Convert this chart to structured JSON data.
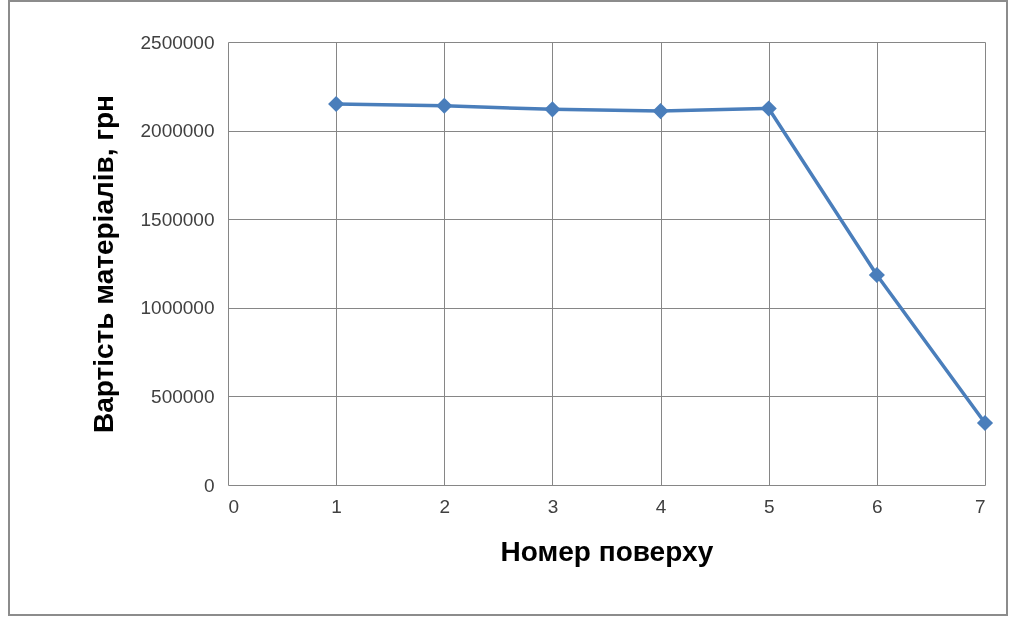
{
  "chart_data": {
    "type": "line",
    "xlabel": "Номер поверху",
    "ylabel": "Вартість матеріалів, грн",
    "x": [
      1,
      2,
      3,
      4,
      5,
      6,
      7
    ],
    "series": [
      {
        "color": "#4a7ebb",
        "values": [
          2150000,
          2140000,
          2120000,
          2110000,
          2125000,
          1185000,
          350000
        ]
      }
    ],
    "xlim": [
      0,
      7
    ],
    "xticks": [
      0,
      1,
      2,
      3,
      4,
      5,
      6,
      7
    ],
    "ylim": [
      0,
      2500000
    ],
    "yticks": [
      0,
      500000,
      1000000,
      1500000,
      2000000,
      2500000
    ],
    "grid": true,
    "marker": "diamond",
    "line_style": "solid"
  }
}
